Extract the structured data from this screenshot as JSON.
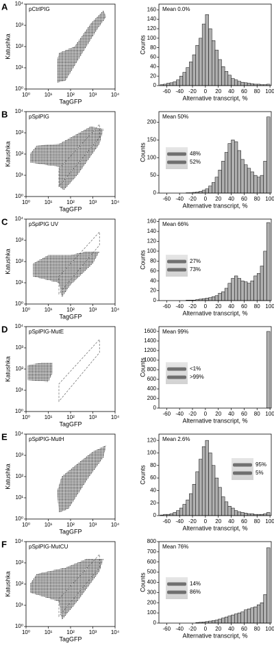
{
  "chart_data": [
    {
      "type": "scatter",
      "panel": "A",
      "label": "pCtrlPIG",
      "xlabel": "TagGFP",
      "ylabel": "Katushka",
      "log": true,
      "xlim": [
        1,
        10000
      ],
      "ylim": [
        1,
        10000
      ],
      "xticks": [
        {
          "value": 1,
          "label": "10⁰"
        },
        {
          "value": 10,
          "label": "10¹"
        },
        {
          "value": 100,
          "label": "10²"
        },
        {
          "value": 1000,
          "label": "10³"
        },
        {
          "value": 10000,
          "label": "10⁴"
        }
      ],
      "yticks": [
        {
          "value": 1,
          "label": "10⁰"
        },
        {
          "value": 10,
          "label": "10¹"
        },
        {
          "value": 100,
          "label": "10²"
        },
        {
          "value": 1000,
          "label": "10³"
        },
        {
          "value": 10000,
          "label": "10⁴"
        }
      ],
      "clouds": [
        [
          [
            25,
            2
          ],
          [
            60,
            2.5
          ],
          [
            300,
            40
          ],
          [
            1500,
            600
          ],
          [
            4000,
            2500
          ],
          [
            3000,
            5000
          ],
          [
            800,
            1200
          ],
          [
            150,
            100
          ],
          [
            30,
            50
          ],
          [
            25,
            20
          ]
        ]
      ]
    },
    {
      "type": "histogram",
      "annotation": "Mean 0.0%",
      "xlabel": "Alternative transcript, %",
      "ylabel": "Counts",
      "color": "#b0b0b0",
      "xlim": [
        -72,
        102
      ],
      "xticks": [
        -60,
        -40,
        -20,
        0,
        20,
        40,
        60,
        80,
        100
      ],
      "ylim": [
        0,
        172
      ],
      "yticks": [
        0,
        20,
        40,
        60,
        80,
        100,
        120,
        140,
        160
      ],
      "bins": [
        -70,
        -65,
        -60,
        -55,
        -50,
        -45,
        -40,
        -35,
        -30,
        -25,
        -20,
        -15,
        -10,
        -5,
        0,
        5,
        10,
        15,
        20,
        25,
        30,
        35,
        40,
        45,
        50,
        55,
        60,
        65,
        70,
        75,
        80,
        85,
        90,
        95,
        100
      ],
      "values": [
        2,
        3,
        5,
        6,
        8,
        12,
        20,
        28,
        38,
        50,
        65,
        85,
        100,
        130,
        150,
        120,
        95,
        75,
        55,
        40,
        30,
        22,
        15,
        12,
        9,
        7,
        6,
        5,
        4,
        3,
        3,
        2,
        2,
        3
      ]
    },
    {
      "type": "scatter",
      "panel": "B",
      "label": "pSplPIG",
      "xlabel": "TagGFP",
      "ylabel": "Katushka",
      "log": true,
      "xlim": [
        1,
        10000
      ],
      "ylim": [
        1,
        10000
      ],
      "xticks": [
        {
          "value": 1,
          "label": "10⁰"
        },
        {
          "value": 10,
          "label": "10¹"
        },
        {
          "value": 100,
          "label": "10²"
        },
        {
          "value": 1000,
          "label": "10³"
        },
        {
          "value": 10000,
          "label": "10⁴"
        }
      ],
      "yticks": [
        {
          "value": 1,
          "label": "10⁰"
        },
        {
          "value": 10,
          "label": "10¹"
        },
        {
          "value": 100,
          "label": "10²"
        },
        {
          "value": 1000,
          "label": "10³"
        },
        {
          "value": 10000,
          "label": "10⁴"
        }
      ],
      "clouds": [
        [
          [
            1.5,
            40
          ],
          [
            30,
            25
          ],
          [
            30,
            3
          ],
          [
            50,
            2
          ],
          [
            200,
            10
          ],
          [
            2000,
            300
          ],
          [
            3000,
            1500
          ],
          [
            800,
            2000
          ],
          [
            100,
            600
          ],
          [
            30,
            300
          ],
          [
            3,
            250
          ],
          [
            1.5,
            100
          ]
        ]
      ],
      "gate": [
        [
          30,
          3
        ],
        [
          30,
          20
        ],
        [
          2000,
          2500
        ],
        [
          2000,
          600
        ]
      ]
    },
    {
      "type": "histogram",
      "annotation": "Mean 50%",
      "xlabel": "Alternative transcript, %",
      "ylabel": "Counts",
      "color": "#b0b0b0",
      "xlim": [
        -72,
        102
      ],
      "xticks": [
        -60,
        -40,
        -20,
        0,
        20,
        40,
        60,
        80,
        100
      ],
      "ylim": [
        0,
        230
      ],
      "yticks": [
        0,
        50,
        100,
        150,
        200
      ],
      "bins": [
        -70,
        -65,
        -60,
        -55,
        -50,
        -45,
        -40,
        -35,
        -30,
        -25,
        -20,
        -15,
        -10,
        -5,
        0,
        5,
        10,
        15,
        20,
        25,
        30,
        35,
        40,
        45,
        50,
        55,
        60,
        65,
        70,
        75,
        80,
        85,
        90,
        95,
        100
      ],
      "values": [
        0,
        0,
        0,
        0,
        0,
        0,
        0,
        0,
        1,
        1,
        2,
        3,
        5,
        8,
        12,
        20,
        30,
        45,
        65,
        90,
        115,
        140,
        150,
        145,
        120,
        95,
        80,
        70,
        60,
        50,
        45,
        50,
        90,
        215
      ],
      "gel": [
        "48%",
        "52%"
      ],
      "gel_corner": "left"
    },
    {
      "type": "scatter",
      "panel": "C",
      "label": "pSplPIG UV",
      "xlabel": "TagGFP",
      "ylabel": "Katushka",
      "log": true,
      "xlim": [
        1,
        10000
      ],
      "ylim": [
        1,
        10000
      ],
      "xticks": [
        {
          "value": 1,
          "label": "10⁰"
        },
        {
          "value": 10,
          "label": "10¹"
        },
        {
          "value": 100,
          "label": "10²"
        },
        {
          "value": 1000,
          "label": "10³"
        },
        {
          "value": 10000,
          "label": "10⁴"
        }
      ],
      "yticks": [
        {
          "value": 1,
          "label": "10⁰"
        },
        {
          "value": 10,
          "label": "10¹"
        },
        {
          "value": 100,
          "label": "10²"
        },
        {
          "value": 1000,
          "label": "10³"
        },
        {
          "value": 10000,
          "label": "10⁴"
        }
      ],
      "clouds": [
        [
          [
            2,
            20
          ],
          [
            30,
            10
          ],
          [
            40,
            2
          ],
          [
            100,
            8
          ],
          [
            1000,
            80
          ],
          [
            2000,
            300
          ],
          [
            500,
            300
          ],
          [
            100,
            200
          ],
          [
            10,
            200
          ],
          [
            2,
            80
          ]
        ]
      ],
      "gate": [
        [
          30,
          3
        ],
        [
          30,
          20
        ],
        [
          2000,
          2500
        ],
        [
          2000,
          600
        ]
      ]
    },
    {
      "type": "histogram",
      "annotation": "Mean 66%",
      "xlabel": "Alternative transcript, %",
      "ylabel": "Counts",
      "color": "#b0b0b0",
      "xlim": [
        -72,
        102
      ],
      "xticks": [
        -60,
        -40,
        -20,
        0,
        20,
        40,
        60,
        80,
        100
      ],
      "ylim": [
        0,
        165
      ],
      "yticks": [
        0,
        20,
        40,
        60,
        80,
        100,
        120,
        140,
        160
      ],
      "bins": [
        -70,
        -65,
        -60,
        -55,
        -50,
        -45,
        -40,
        -35,
        -30,
        -25,
        -20,
        -15,
        -10,
        -5,
        0,
        5,
        10,
        15,
        20,
        25,
        30,
        35,
        40,
        45,
        50,
        55,
        60,
        65,
        70,
        75,
        80,
        85,
        90,
        95,
        100
      ],
      "values": [
        0,
        0,
        0,
        0,
        0,
        0,
        0,
        0,
        1,
        1,
        1,
        2,
        3,
        4,
        5,
        6,
        8,
        10,
        15,
        18,
        25,
        35,
        45,
        50,
        45,
        40,
        38,
        35,
        40,
        50,
        55,
        70,
        100,
        158
      ],
      "gel": [
        "27%",
        "73%"
      ],
      "gel_corner": "left"
    },
    {
      "type": "scatter",
      "panel": "D",
      "label": "pSplPIG-MutE",
      "xlabel": "TagGFP",
      "ylabel": "Katushka",
      "log": true,
      "xlim": [
        1,
        10000
      ],
      "ylim": [
        1,
        10000
      ],
      "xticks": [
        {
          "value": 1,
          "label": "10⁰"
        },
        {
          "value": 10,
          "label": "10¹"
        },
        {
          "value": 100,
          "label": "10²"
        },
        {
          "value": 1000,
          "label": "10³"
        },
        {
          "value": 10000,
          "label": "10⁴"
        }
      ],
      "yticks": [
        {
          "value": 1,
          "label": "10⁰"
        },
        {
          "value": 10,
          "label": "10¹"
        },
        {
          "value": 100,
          "label": "10²"
        },
        {
          "value": 1000,
          "label": "10³"
        },
        {
          "value": 10000,
          "label": "10⁴"
        }
      ],
      "clouds": [
        [
          [
            1.2,
            30
          ],
          [
            10,
            25
          ],
          [
            15,
            60
          ],
          [
            15,
            200
          ],
          [
            5,
            200
          ],
          [
            1.2,
            150
          ]
        ]
      ],
      "gate": [
        [
          30,
          3
        ],
        [
          30,
          20
        ],
        [
          2000,
          2500
        ],
        [
          2000,
          600
        ]
      ]
    },
    {
      "type": "histogram",
      "annotation": "Mean 99%",
      "xlabel": "Alternative transcript, %",
      "ylabel": "Counts",
      "color": "#b0b0b0",
      "xlim": [
        -72,
        102
      ],
      "xticks": [
        -60,
        -40,
        -20,
        0,
        20,
        40,
        60,
        80,
        100
      ],
      "ylim": [
        0,
        1700
      ],
      "yticks": [
        0,
        200,
        400,
        600,
        800,
        1000,
        1200,
        1400,
        1600
      ],
      "bins": [
        -70,
        -65,
        -60,
        -55,
        -50,
        -45,
        -40,
        -35,
        -30,
        -25,
        -20,
        -15,
        -10,
        -5,
        0,
        5,
        10,
        15,
        20,
        25,
        30,
        35,
        40,
        45,
        50,
        55,
        60,
        65,
        70,
        75,
        80,
        85,
        90,
        95,
        100
      ],
      "values": [
        0,
        0,
        0,
        0,
        0,
        0,
        0,
        0,
        0,
        0,
        0,
        0,
        0,
        0,
        0,
        0,
        0,
        0,
        0,
        0,
        0,
        0,
        0,
        0,
        0,
        0,
        0,
        0,
        0,
        0,
        0,
        0,
        0,
        1600
      ],
      "gel": [
        "<1%",
        ">99%"
      ],
      "gel_corner": "left"
    },
    {
      "type": "scatter",
      "panel": "E",
      "label": "pSplPIG-MutH",
      "xlabel": "TagGFP",
      "ylabel": "Katushka",
      "log": true,
      "xlim": [
        1,
        10000
      ],
      "ylim": [
        1,
        10000
      ],
      "xticks": [
        {
          "value": 1,
          "label": "10⁰"
        },
        {
          "value": 10,
          "label": "10¹"
        },
        {
          "value": 100,
          "label": "10²"
        },
        {
          "value": 1000,
          "label": "10³"
        },
        {
          "value": 10000,
          "label": "10⁴"
        }
      ],
      "yticks": [
        {
          "value": 1,
          "label": "10⁰"
        },
        {
          "value": 10,
          "label": "10¹"
        },
        {
          "value": 100,
          "label": "10²"
        },
        {
          "value": 1000,
          "label": "10³"
        },
        {
          "value": 10000,
          "label": "10⁴"
        }
      ],
      "clouds": [
        [
          [
            30,
            2
          ],
          [
            80,
            3
          ],
          [
            600,
            80
          ],
          [
            3000,
            800
          ],
          [
            4000,
            3000
          ],
          [
            1000,
            1500
          ],
          [
            200,
            400
          ],
          [
            40,
            100
          ],
          [
            25,
            20
          ]
        ]
      ]
    },
    {
      "type": "histogram",
      "annotation": "Mean 2.6%",
      "xlabel": "Alternative transcript, %",
      "ylabel": "Counts",
      "color": "#b0b0b0",
      "xlim": [
        -72,
        102
      ],
      "xticks": [
        -60,
        -40,
        -20,
        0,
        20,
        40,
        60,
        80,
        100
      ],
      "ylim": [
        0,
        130
      ],
      "yticks": [
        0,
        20,
        40,
        60,
        80,
        100,
        120
      ],
      "bins": [
        -70,
        -65,
        -60,
        -55,
        -50,
        -45,
        -40,
        -35,
        -30,
        -25,
        -20,
        -15,
        -10,
        -5,
        0,
        5,
        10,
        15,
        20,
        25,
        30,
        35,
        40,
        45,
        50,
        55,
        60,
        65,
        70,
        75,
        80,
        85,
        90,
        95,
        100
      ],
      "values": [
        1,
        2,
        2,
        3,
        5,
        8,
        12,
        18,
        25,
        35,
        50,
        70,
        90,
        110,
        120,
        100,
        80,
        60,
        45,
        30,
        22,
        15,
        12,
        8,
        6,
        5,
        4,
        3,
        3,
        2,
        2,
        2,
        3,
        5
      ],
      "gel": [
        "95%",
        "5%"
      ],
      "gel_corner": "right"
    },
    {
      "type": "scatter",
      "panel": "F",
      "label": "pSplPIG-MutCU",
      "xlabel": "TagGFP",
      "ylabel": "Katushka",
      "log": true,
      "xlim": [
        1,
        10000
      ],
      "ylim": [
        1,
        10000
      ],
      "xticks": [
        {
          "value": 1,
          "label": "10⁰"
        },
        {
          "value": 10,
          "label": "10¹"
        },
        {
          "value": 100,
          "label": "10²"
        },
        {
          "value": 1000,
          "label": "10³"
        },
        {
          "value": 10000,
          "label": "10⁴"
        }
      ],
      "yticks": [
        {
          "value": 1,
          "label": "10⁰"
        },
        {
          "value": 10,
          "label": "10¹"
        },
        {
          "value": 100,
          "label": "10²"
        },
        {
          "value": 1000,
          "label": "10³"
        },
        {
          "value": 10000,
          "label": "10⁴"
        }
      ],
      "clouds": [
        [
          [
            1.5,
            40
          ],
          [
            30,
            15
          ],
          [
            40,
            2
          ],
          [
            200,
            15
          ],
          [
            2000,
            400
          ],
          [
            3000,
            1500
          ],
          [
            500,
            1500
          ],
          [
            60,
            600
          ],
          [
            3,
            300
          ],
          [
            1.5,
            100
          ]
        ]
      ],
      "gate": [
        [
          30,
          3
        ],
        [
          30,
          20
        ],
        [
          2000,
          2500
        ],
        [
          2000,
          600
        ]
      ]
    },
    {
      "type": "histogram",
      "annotation": "Mean 76%",
      "xlabel": "Alternative transcript, %",
      "ylabel": "Counts",
      "color": "#b0b0b0",
      "xlim": [
        -72,
        102
      ],
      "xticks": [
        -60,
        -40,
        -20,
        0,
        20,
        40,
        60,
        80,
        100
      ],
      "ylim": [
        0,
        800
      ],
      "yticks": [
        0,
        100,
        200,
        300,
        400,
        500,
        600,
        700,
        800
      ],
      "bins": [
        -70,
        -65,
        -60,
        -55,
        -50,
        -45,
        -40,
        -35,
        -30,
        -25,
        -20,
        -15,
        -10,
        -5,
        0,
        5,
        10,
        15,
        20,
        25,
        30,
        35,
        40,
        45,
        50,
        55,
        60,
        65,
        70,
        75,
        80,
        85,
        90,
        95,
        100
      ],
      "values": [
        0,
        0,
        0,
        0,
        0,
        0,
        0,
        0,
        0,
        0,
        0,
        5,
        8,
        10,
        15,
        20,
        25,
        30,
        40,
        50,
        60,
        70,
        80,
        90,
        100,
        110,
        130,
        140,
        150,
        160,
        180,
        200,
        280,
        740
      ],
      "gel": [
        "14%",
        "86%"
      ],
      "gel_corner": "left"
    }
  ]
}
